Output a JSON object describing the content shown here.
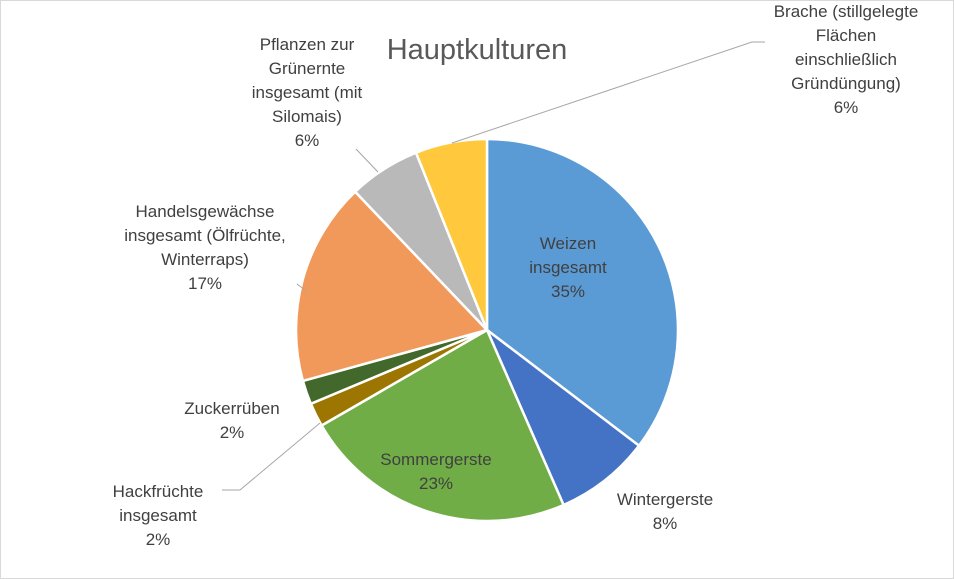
{
  "chart_data": {
    "type": "pie",
    "title": "Hauptkulturen",
    "categories": [
      "Weizen insgesamt",
      "Wintergerste",
      "Sommergerste",
      "Hackfrüchte insgesamt",
      "Zuckerrüben",
      "Handelsgewächse insgesamt (Ölfrüchte, Winterraps)",
      "Pflanzen zur Grünernte insgesamt (mit Silomais)",
      "Brache (stillgelegte Flächen einschließlich Gründüngung)"
    ],
    "values": [
      35,
      8,
      23,
      2,
      2,
      17,
      6,
      6
    ],
    "value_labels": [
      "35%",
      "8%",
      "23%",
      "2%",
      "2%",
      "17%",
      "6%",
      "6%"
    ],
    "colors": [
      "#5b9bd5",
      "#4472c4",
      "#70ad47",
      "#9c7600",
      "#43682b",
      "#f1995a",
      "#b9b9b9",
      "#ffc83d"
    ]
  }
}
